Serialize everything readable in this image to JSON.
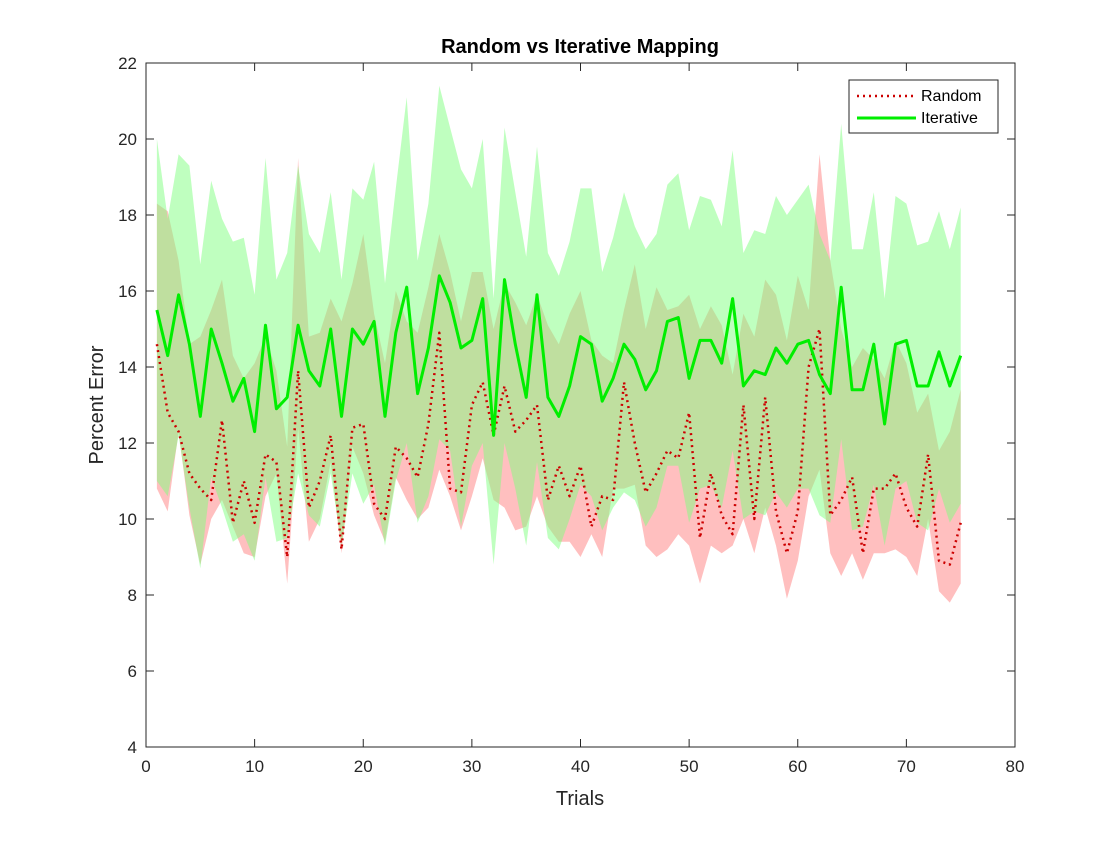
{
  "chart_data": {
    "type": "line",
    "title": "Random vs Iterative Mapping",
    "xlabel": "Trials",
    "ylabel": "Percent Error",
    "xlim": [
      0,
      80
    ],
    "ylim": [
      4,
      22
    ],
    "xticks": [
      0,
      10,
      20,
      30,
      40,
      50,
      60,
      70,
      80
    ],
    "yticks": [
      4,
      6,
      8,
      10,
      12,
      14,
      16,
      18,
      20,
      22
    ],
    "grid": false,
    "legend_position": "top-right",
    "x": [
      1,
      2,
      3,
      4,
      5,
      6,
      7,
      8,
      9,
      10,
      11,
      12,
      13,
      14,
      15,
      16,
      17,
      18,
      19,
      20,
      21,
      22,
      23,
      24,
      25,
      26,
      27,
      28,
      29,
      30,
      31,
      32,
      33,
      34,
      35,
      36,
      37,
      38,
      39,
      40,
      41,
      42,
      43,
      44,
      45,
      46,
      47,
      48,
      49,
      50,
      51,
      52,
      53,
      54,
      55,
      56,
      57,
      58,
      59,
      60,
      61,
      62,
      63,
      64,
      65,
      66,
      67,
      68,
      69,
      70,
      71,
      72,
      73,
      74,
      75
    ],
    "series": [
      {
        "name": "Random",
        "color": "#cc0000",
        "band_color": "#ff8080",
        "line_style": "dotted",
        "values": [
          14.6,
          12.8,
          12.3,
          11.2,
          10.8,
          10.5,
          12.6,
          9.9,
          11.0,
          9.9,
          11.7,
          11.5,
          9.0,
          13.9,
          10.3,
          11.0,
          12.2,
          9.2,
          12.4,
          12.5,
          10.4,
          10.0,
          11.9,
          11.6,
          11.1,
          12.5,
          14.9,
          10.8,
          10.7,
          13.0,
          13.6,
          12.2,
          13.5,
          12.3,
          12.6,
          13.0,
          10.5,
          11.4,
          10.6,
          11.4,
          9.8,
          10.6,
          10.5,
          13.6,
          12.0,
          10.7,
          11.2,
          11.8,
          11.6,
          12.8,
          9.5,
          11.2,
          10.1,
          9.6,
          13.0,
          10.0,
          13.2,
          10.2,
          9.1,
          10.2,
          14.0,
          15.0,
          10.1,
          10.5,
          11.1,
          9.1,
          10.8,
          10.8,
          11.2,
          10.3,
          9.8,
          11.7,
          8.9,
          8.8,
          9.9
        ],
        "lower": [
          10.8,
          10.2,
          12.3,
          10.1,
          8.8,
          10.0,
          10.5,
          9.8,
          9.1,
          9.0,
          10.6,
          11.2,
          8.3,
          12.4,
          9.4,
          10.0,
          11.5,
          9.1,
          11.9,
          11.2,
          10.1,
          9.4,
          11.1,
          10.5,
          10.0,
          10.3,
          11.3,
          10.6,
          9.7,
          10.6,
          11.6,
          10.5,
          10.3,
          9.7,
          9.8,
          10.6,
          9.8,
          9.4,
          9.4,
          9.0,
          9.6,
          9.0,
          10.8,
          10.8,
          10.9,
          9.3,
          9.0,
          9.2,
          9.6,
          9.3,
          8.3,
          9.3,
          9.1,
          9.3,
          10.0,
          9.1,
          10.3,
          9.3,
          7.9,
          8.9,
          10.6,
          11.3,
          9.1,
          8.5,
          9.1,
          8.4,
          9.1,
          9.1,
          9.2,
          9.0,
          8.5,
          10.0,
          8.1,
          7.8,
          8.3
        ],
        "upper": [
          18.3,
          18.1,
          16.8,
          14.6,
          14.8,
          15.5,
          16.3,
          14.3,
          13.7,
          14.1,
          14.8,
          13.9,
          11.9,
          19.5,
          14.8,
          14.9,
          15.8,
          15.2,
          16.2,
          17.5,
          15.4,
          14.1,
          16.0,
          15.2,
          14.9,
          16.1,
          17.5,
          16.5,
          15.2,
          16.5,
          16.5,
          15.0,
          16.2,
          15.7,
          15.1,
          15.9,
          15.1,
          14.6,
          15.4,
          16.0,
          14.7,
          14.3,
          14.1,
          15.5,
          16.7,
          15.0,
          16.1,
          15.5,
          15.6,
          15.9,
          15.0,
          15.6,
          15.1,
          13.8,
          15.4,
          14.8,
          16.3,
          15.9,
          14.7,
          16.4,
          15.5,
          19.6,
          16.8,
          15.0,
          14.0,
          14.5,
          14.2,
          13.7,
          14.7,
          14.1,
          12.8,
          13.3,
          11.8,
          12.3,
          13.4
        ]
      },
      {
        "name": "Iterative",
        "color": "#00ee00",
        "band_color": "#80ff80",
        "line_style": "solid",
        "values": [
          15.5,
          14.3,
          15.9,
          14.6,
          12.7,
          15.0,
          14.1,
          13.1,
          13.7,
          12.3,
          15.1,
          12.9,
          13.2,
          15.1,
          13.9,
          13.5,
          15.0,
          12.7,
          15.0,
          14.6,
          15.2,
          12.7,
          14.9,
          16.1,
          13.3,
          14.5,
          16.4,
          15.7,
          14.5,
          14.7,
          15.8,
          12.2,
          16.3,
          14.6,
          13.2,
          15.9,
          13.2,
          12.7,
          13.5,
          14.8,
          14.6,
          13.1,
          13.7,
          14.6,
          14.2,
          13.4,
          13.9,
          15.2,
          15.3,
          13.7,
          14.7,
          14.7,
          14.1,
          15.8,
          13.5,
          13.9,
          13.8,
          14.5,
          14.1,
          14.6,
          14.7,
          13.8,
          13.3,
          16.1,
          13.4,
          13.4,
          14.6,
          12.5,
          14.6,
          14.7,
          13.5,
          13.5,
          14.4,
          13.5,
          14.3
        ],
        "lower": [
          11.0,
          10.6,
          12.2,
          10.3,
          8.7,
          11.1,
          10.3,
          9.4,
          9.6,
          8.9,
          11.1,
          9.4,
          9.5,
          11.2,
          10.1,
          9.8,
          11.2,
          9.3,
          11.2,
          10.4,
          10.9,
          9.3,
          11.0,
          12.0,
          9.9,
          10.6,
          12.1,
          11.8,
          9.8,
          11.4,
          12.0,
          8.8,
          12.0,
          10.8,
          9.3,
          11.5,
          9.5,
          9.2,
          10.0,
          10.9,
          10.6,
          9.7,
          10.3,
          10.7,
          10.5,
          9.8,
          10.3,
          11.4,
          11.4,
          9.9,
          10.8,
          10.9,
          10.3,
          11.8,
          10.0,
          10.2,
          10.1,
          10.7,
          10.3,
          10.8,
          10.8,
          10.1,
          9.9,
          12.1,
          9.7,
          9.8,
          10.9,
          9.3,
          10.8,
          11.0,
          9.9,
          9.7,
          10.8,
          9.9,
          10.4
        ],
        "upper": [
          20.0,
          17.9,
          19.6,
          19.3,
          16.7,
          18.9,
          17.9,
          17.3,
          17.4,
          15.9,
          19.5,
          16.3,
          17.0,
          19.3,
          17.5,
          17.0,
          18.6,
          16.3,
          18.7,
          18.4,
          19.4,
          16.2,
          18.7,
          21.1,
          16.8,
          18.3,
          21.4,
          20.3,
          19.2,
          18.7,
          20.0,
          15.8,
          20.3,
          18.6,
          16.9,
          19.8,
          17.0,
          16.4,
          17.3,
          18.7,
          18.7,
          16.5,
          17.4,
          18.6,
          17.7,
          17.1,
          17.5,
          18.8,
          19.1,
          17.6,
          18.5,
          18.4,
          17.7,
          19.7,
          17.0,
          17.6,
          17.5,
          18.5,
          18.0,
          18.4,
          18.8,
          17.5,
          16.8,
          20.4,
          17.1,
          17.1,
          18.6,
          15.8,
          18.5,
          18.3,
          17.2,
          17.3,
          18.1,
          17.1,
          18.2
        ]
      }
    ]
  }
}
